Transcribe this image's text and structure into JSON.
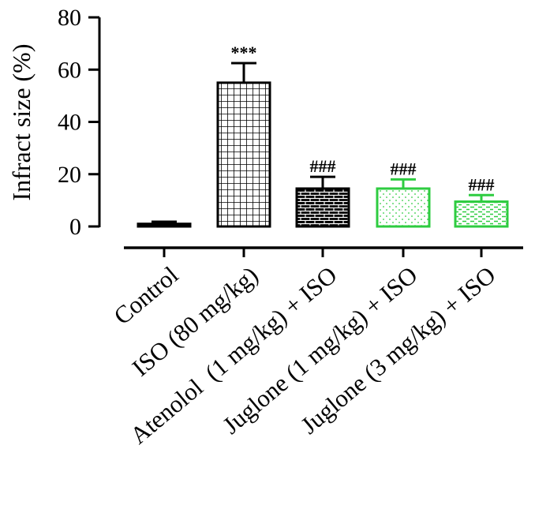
{
  "chart_data": {
    "type": "bar",
    "title": "",
    "xlabel": "",
    "ylabel": "Infract size (%)",
    "ylim": [
      0,
      80
    ],
    "yticks": [
      0,
      20,
      40,
      60,
      80
    ],
    "categories": [
      "Control",
      "ISO (80 mg/kg)",
      "Atenolol  (1 mg/kg) + ISO",
      "Juglone (1 mg/kg) + ISO",
      "Juglone (3 mg/kg) + ISO"
    ],
    "values": [
      1,
      55,
      14.5,
      14.5,
      9.5
    ],
    "errors": [
      0.8,
      7.5,
      4.5,
      3.5,
      2.5
    ],
    "annotations": [
      "",
      "***",
      "###",
      "###",
      "###"
    ],
    "colors": [
      "#000000",
      "#000000",
      "#000000",
      "#2ecc40",
      "#2ecc40"
    ],
    "patterns": [
      "solid",
      "grid",
      "brick",
      "dots",
      "dashes"
    ],
    "grid": false,
    "legend": "none"
  }
}
